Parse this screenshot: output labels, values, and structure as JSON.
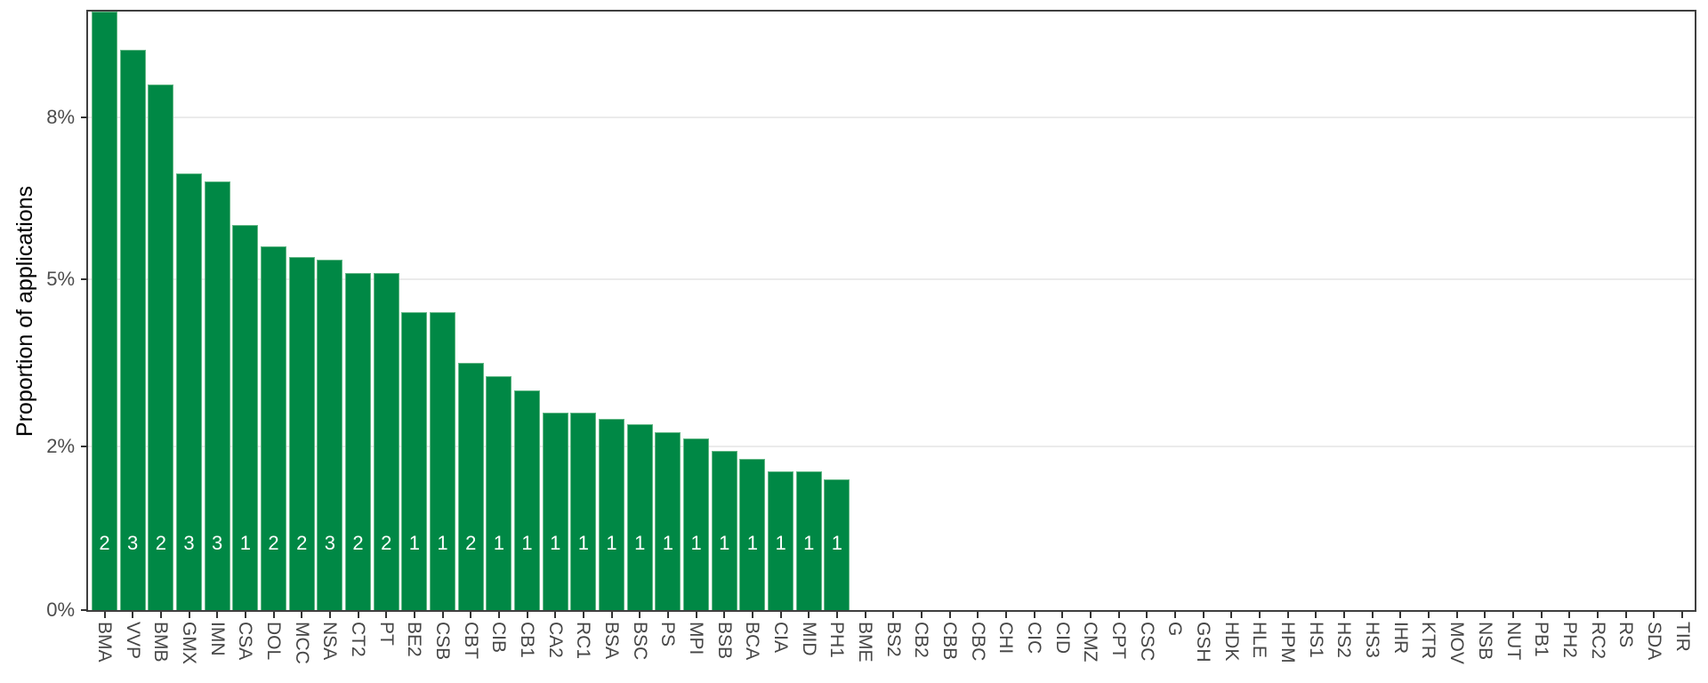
{
  "chart_data": {
    "type": "bar",
    "title": "",
    "xlabel": "",
    "ylabel": "Proportion of applications",
    "legend_position": "none",
    "grid": "horizontal major gridlines only",
    "axis_note": "y breaks 0,2,5,8 are evenly spaced (non-linear scale); bars sorted descending; x labels rotated 90deg",
    "y_ticks": [
      {
        "value": 0,
        "label": "0%"
      },
      {
        "value": 2,
        "label": "2%"
      },
      {
        "value": 5,
        "label": "5%"
      },
      {
        "value": 8,
        "label": "8%"
      }
    ],
    "ylim": [
      0,
      10
    ],
    "categories": [
      "BMA",
      "VVP",
      "BMB",
      "GMX",
      "IMN",
      "CSA",
      "DOL",
      "MCC",
      "NSA",
      "CT2",
      "PT",
      "BE2",
      "CSB",
      "CBT",
      "CIB",
      "CB1",
      "CA2",
      "RC1",
      "BSA",
      "BSC",
      "PS",
      "MPI",
      "BSB",
      "BCA",
      "CIA",
      "MID",
      "PH1",
      "BME",
      "BS2",
      "CB2",
      "CBB",
      "CBC",
      "CHI",
      "CIC",
      "CID",
      "CMZ",
      "CPT",
      "CSC",
      "G",
      "GSH",
      "HDK",
      "HLE",
      "HPM",
      "HS1",
      "HS2",
      "HS3",
      "IHR",
      "KTR",
      "MOV",
      "NSB",
      "NUT",
      "PB1",
      "PH2",
      "RC2",
      "RS",
      "SDA",
      "TIR"
    ],
    "values": [
      9.95,
      9.25,
      8.6,
      6.95,
      6.8,
      6.0,
      5.6,
      5.4,
      5.35,
      5.1,
      5.1,
      4.4,
      4.4,
      3.5,
      3.25,
      3.0,
      2.6,
      2.6,
      2.5,
      2.4,
      2.25,
      2.15,
      1.95,
      1.85,
      1.7,
      1.7,
      1.6,
      0,
      0,
      0,
      0,
      0,
      0,
      0,
      0,
      0,
      0,
      0,
      0,
      0,
      0,
      0,
      0,
      0,
      0,
      0,
      0,
      0,
      0,
      0,
      0,
      0,
      0,
      0,
      0,
      0,
      0
    ],
    "bar_count_labels": [
      2,
      3,
      2,
      3,
      3,
      1,
      2,
      2,
      3,
      2,
      2,
      1,
      1,
      2,
      1,
      1,
      1,
      1,
      1,
      1,
      1,
      1,
      1,
      1,
      1,
      1,
      1
    ],
    "colors": {
      "bar_fill": "#008845",
      "bar_edge_highlight": "#63b786",
      "bar_count_text": "#ffffff",
      "gridline": "#ebebeb",
      "panel_border": "#3f3f3f",
      "axis_tick": "#333333",
      "tick_label": "#4d4d4d",
      "axis_title": "#000000",
      "background": "#ffffff"
    }
  }
}
